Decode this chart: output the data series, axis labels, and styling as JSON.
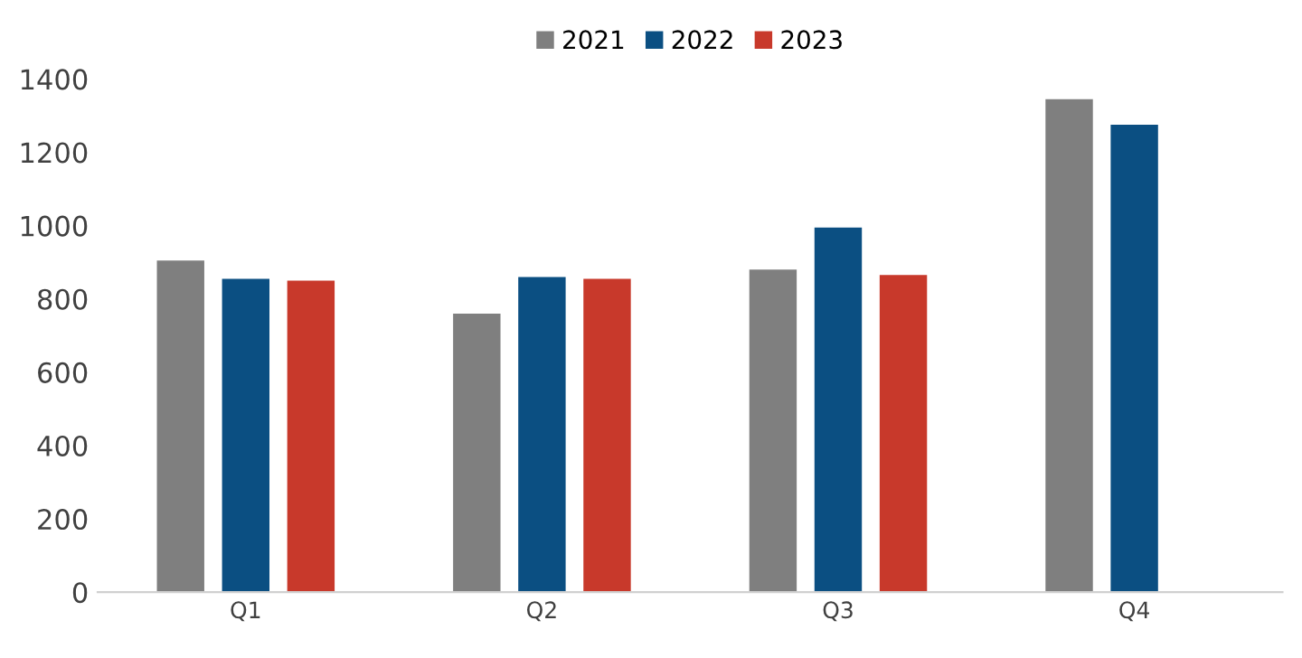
{
  "chart_data": {
    "type": "bar",
    "categories": [
      "Q1",
      "Q2",
      "Q3",
      "Q4"
    ],
    "series": [
      {
        "name": "2021",
        "color": "#7f7f7f",
        "values": [
          905,
          760,
          880,
          1345
        ]
      },
      {
        "name": "2022",
        "color": "#0b4f82",
        "values": [
          855,
          860,
          995,
          1275
        ]
      },
      {
        "name": "2023",
        "color": "#c8392b",
        "values": [
          850,
          855,
          865,
          null
        ]
      }
    ],
    "ylim": [
      0,
      1400
    ],
    "yticks": [
      0,
      200,
      400,
      600,
      800,
      1000,
      1200,
      1400
    ],
    "grid": false,
    "legend": "top"
  }
}
